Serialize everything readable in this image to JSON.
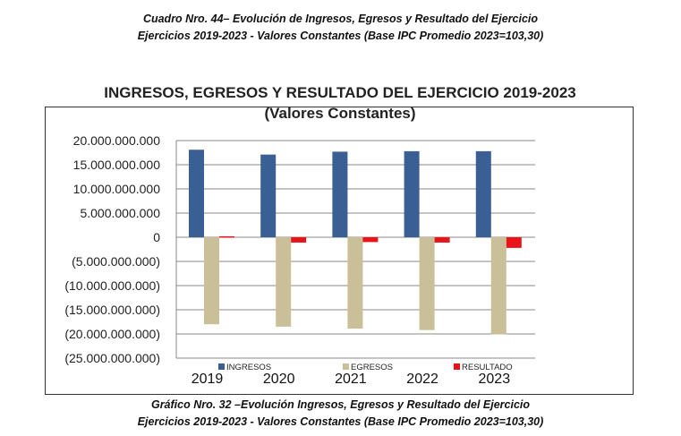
{
  "caption_top": [
    "Cuadro Nro. 44– Evolución de Ingresos, Egresos y Resultado del Ejercicio",
    "Ejercicios 2019-2023 - Valores Constantes (Base IPC Promedio 2023=103,30)"
  ],
  "caption_bottom": [
    "Gráfico Nro. 32 –Evolución Ingresos, Egresos y Resultado del Ejercicio",
    "Ejercicios 2019-2023 - Valores Constantes (Base IPC Promedio 2023=103,30)"
  ],
  "chart_data": {
    "type": "bar",
    "title": "INGRESOS, EGRESOS Y RESULTADO DEL EJERCICIO 2019-2023",
    "subtitle": "(Valores Constantes)",
    "categories": [
      "2019",
      "2020",
      "2021",
      "2022",
      "2023"
    ],
    "series": [
      {
        "name": "INGRESOS",
        "color": "#3a5f94",
        "values": [
          18100000000,
          17100000000,
          17700000000,
          17800000000,
          17800000000
        ]
      },
      {
        "name": "EGRESOS",
        "color": "#c9c09a",
        "values": [
          -18000000000,
          -18500000000,
          -18900000000,
          -19200000000,
          -20100000000
        ]
      },
      {
        "name": "RESULTADO",
        "color": "#e8141a",
        "values": [
          200000000,
          -1100000000,
          -1000000000,
          -1100000000,
          -2200000000
        ]
      }
    ],
    "ylim": [
      -25000000000,
      20000000000
    ],
    "yticks": [
      20000000000,
      15000000000,
      10000000000,
      5000000000,
      0,
      -5000000000,
      -10000000000,
      -15000000000,
      -20000000000,
      -25000000000
    ],
    "ytick_labels": [
      "20.000.000.000",
      "15.000.000.000",
      "10.000.000.000",
      "5.000.000.000",
      "0",
      "(5.000.000.000)",
      "(10.000.000.000)",
      "(15.000.000.000)",
      "(20.000.000.000)",
      "(25.000.000.000)"
    ],
    "grid": true,
    "legend": "bottom"
  }
}
